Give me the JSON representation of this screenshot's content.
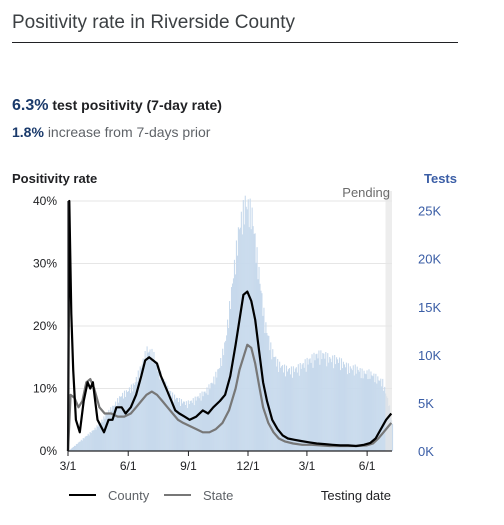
{
  "header": {
    "title": "Positivity rate in Riverside County"
  },
  "summary": {
    "rate_value": "6.3%",
    "rate_label": "test positivity (7-day rate)",
    "change_value": "1.8%",
    "change_label": "increase from 7-days prior"
  },
  "chart_data": {
    "type": "line",
    "ylabel": "Positivity rate",
    "ylabel_right": "Tests",
    "xlabel": "Testing date",
    "pending_label": "Pending",
    "y_ticks": [
      "0%",
      "10%",
      "20%",
      "30%",
      "40%"
    ],
    "y_tick_values": [
      0,
      10,
      20,
      30,
      40
    ],
    "ylim": [
      0,
      40
    ],
    "y2_ticks": [
      "0K",
      "5K",
      "10K",
      "15K",
      "20K",
      "25K"
    ],
    "y2_tick_values": [
      0,
      5000,
      10000,
      15000,
      20000,
      25000
    ],
    "y2lim": [
      0,
      26000
    ],
    "x_ticks": [
      "3/1",
      "6/1",
      "9/1",
      "12/1",
      "3/1",
      "6/1"
    ],
    "x_tick_days": [
      0,
      92,
      184,
      275,
      365,
      457
    ],
    "x_range_days": [
      0,
      495
    ],
    "pending_start_day": 485,
    "colors": {
      "county": "#000000",
      "state": "#777777",
      "tests": "#c7d9ec",
      "axis_right": "#3b5ea6"
    },
    "series": [
      {
        "name": "County",
        "x": [
          0,
          2,
          5,
          8,
          12,
          18,
          24,
          30,
          34,
          38,
          45,
          55,
          62,
          68,
          74,
          82,
          88,
          96,
          104,
          112,
          118,
          124,
          130,
          136,
          142,
          150,
          158,
          164,
          170,
          178,
          186,
          196,
          206,
          214,
          222,
          232,
          240,
          248,
          256,
          262,
          268,
          274,
          280,
          286,
          292,
          298,
          304,
          312,
          320,
          328,
          336,
          346,
          356,
          368,
          380,
          392,
          404,
          416,
          428,
          440,
          452,
          462,
          470,
          478,
          486,
          494
        ],
        "values": [
          0,
          40,
          22,
          13,
          5,
          3,
          8,
          11,
          10,
          11,
          5,
          3,
          5,
          5,
          7,
          7,
          6,
          7,
          9,
          12,
          14.5,
          15,
          14.5,
          14,
          12,
          10,
          8,
          6.5,
          6,
          5.5,
          5,
          5.5,
          6.5,
          6,
          7,
          8,
          9,
          12,
          17,
          21,
          25,
          25.5,
          24,
          21,
          16,
          11,
          8,
          5,
          3.5,
          2.5,
          2,
          1.8,
          1.6,
          1.4,
          1.2,
          1.1,
          1,
          0.9,
          0.9,
          0.8,
          1,
          1.3,
          2,
          3.5,
          5,
          6
        ]
      },
      {
        "name": "State",
        "x": [
          0,
          4,
          10,
          16,
          22,
          28,
          34,
          40,
          48,
          56,
          66,
          76,
          86,
          96,
          104,
          112,
          120,
          128,
          136,
          144,
          152,
          160,
          168,
          176,
          186,
          196,
          206,
          216,
          226,
          236,
          246,
          256,
          262,
          268,
          274,
          280,
          286,
          292,
          298,
          306,
          314,
          322,
          332,
          344,
          358,
          372,
          386,
          400,
          414,
          428,
          442,
          456,
          466,
          474,
          482,
          490,
          494
        ],
        "values": [
          0,
          9,
          8.5,
          7,
          8,
          11,
          11.5,
          10,
          7,
          6,
          6,
          5.5,
          5.5,
          6,
          7,
          8,
          9,
          9.5,
          9,
          8,
          7,
          6,
          5,
          4.5,
          4,
          3.5,
          3,
          3,
          3.5,
          4.5,
          6.5,
          10,
          13,
          15,
          17,
          16.5,
          14,
          10.5,
          7,
          4.5,
          3,
          2,
          1.5,
          1.2,
          1,
          1,
          0.9,
          0.8,
          0.8,
          0.8,
          0.8,
          0.9,
          1.2,
          2,
          3,
          4,
          4.5
        ]
      },
      {
        "name": "Tests",
        "x": [
          0,
          10,
          20,
          30,
          40,
          50,
          60,
          70,
          80,
          90,
          100,
          110,
          120,
          130,
          140,
          150,
          160,
          170,
          180,
          190,
          200,
          210,
          220,
          230,
          240,
          250,
          260,
          270,
          280,
          290,
          300,
          310,
          320,
          330,
          340,
          350,
          360,
          370,
          380,
          390,
          400,
          410,
          420,
          430,
          440,
          450,
          460,
          470,
          480,
          490,
          494
        ],
        "values": [
          0,
          600,
          1200,
          1800,
          2400,
          3200,
          4200,
          5000,
          6000,
          6500,
          7200,
          9000,
          11000,
          10500,
          8500,
          7000,
          6000,
          5500,
          5200,
          5500,
          6000,
          6500,
          7500,
          9000,
          12000,
          18000,
          24000,
          27000,
          26000,
          20000,
          14000,
          11000,
          9500,
          9000,
          8800,
          9000,
          9500,
          10000,
          10500,
          10500,
          10000,
          10000,
          9500,
          9000,
          9000,
          8500,
          8500,
          8000,
          7500,
          5000,
          3000
        ]
      }
    ],
    "grid": true,
    "legend_position": "bottom-left"
  }
}
